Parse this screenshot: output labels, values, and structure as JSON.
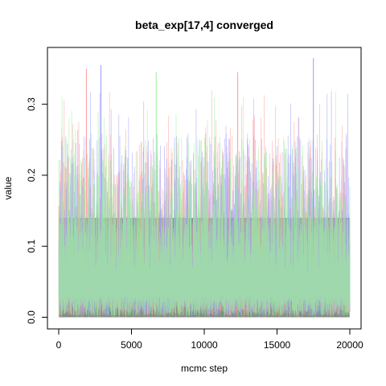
{
  "chart_data": {
    "type": "line",
    "title": "beta_exp[17,4] converged",
    "xlabel": "mcmc step",
    "ylabel": "value",
    "xlim": [
      0,
      20000
    ],
    "ylim": [
      0.0,
      0.35
    ],
    "x_ticks": [
      0,
      5000,
      10000,
      15000,
      20000
    ],
    "x_tick_labels": [
      "0",
      "5000",
      "10000",
      "15000",
      "20000"
    ],
    "y_ticks": [
      0.0,
      0.1,
      0.2,
      0.3
    ],
    "y_tick_labels": [
      "0.0",
      "0.1",
      "0.2",
      "0.3"
    ],
    "grid": false,
    "legend": "none",
    "series_colors": [
      "#ff9999",
      "#9999ff",
      "#99ee99"
    ],
    "dense_band_color": "#7a9280",
    "trace_summary": {
      "dense_band_low": 0.0,
      "dense_band_high": 0.14,
      "typical_max": 0.26,
      "peaks": [
        {
          "x": 1900,
          "y": 0.35
        },
        {
          "x": 2900,
          "y": 0.355
        },
        {
          "x": 6700,
          "y": 0.345
        },
        {
          "x": 12300,
          "y": 0.345
        },
        {
          "x": 17500,
          "y": 0.365
        }
      ]
    }
  }
}
